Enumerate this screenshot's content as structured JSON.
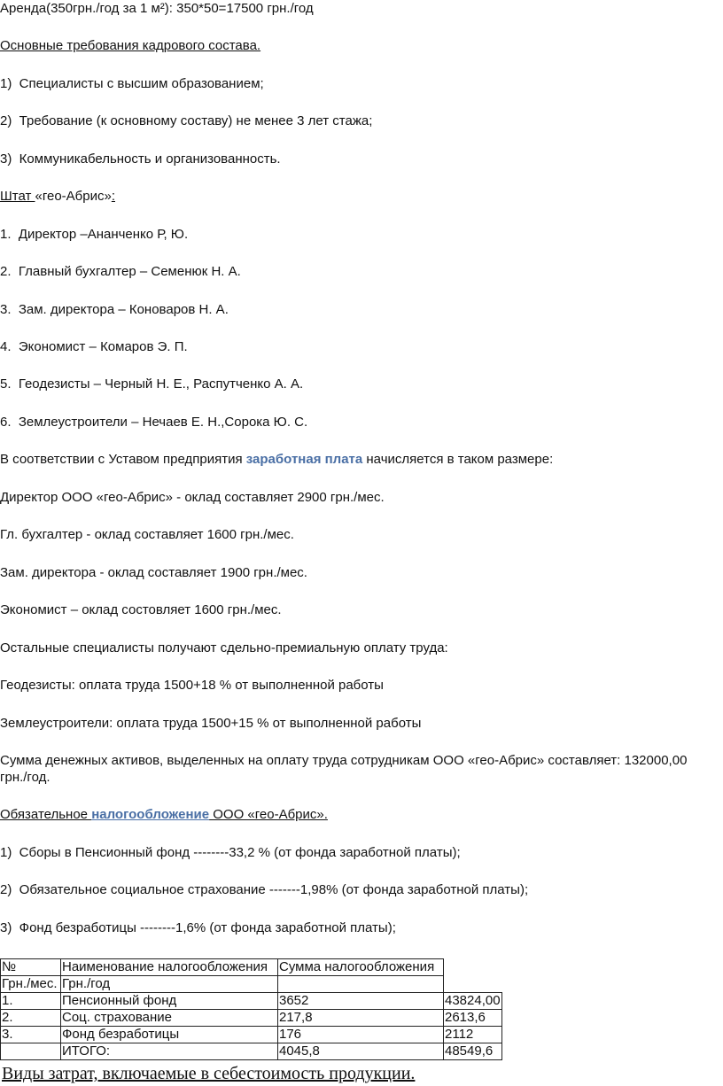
{
  "colors": {
    "highlight": "#4a6fa5",
    "text": "#111111"
  },
  "lines": [
    {
      "segments": [
        {
          "text": "Аренда(350грн./год за 1 м²): 350*50=17500 грн./год"
        }
      ]
    },
    {
      "segments": [
        {
          "text": "Основные требования кадрового состава.",
          "u": true
        }
      ]
    },
    {
      "segments": [
        {
          "text": "1)  Специалисты с высшим образованием;"
        }
      ]
    },
    {
      "segments": [
        {
          "text": "2)  Требование (к основному составу) не менее 3 лет стажа;"
        }
      ]
    },
    {
      "segments": [
        {
          "text": "3)  Коммуникабельность и организованность."
        }
      ]
    },
    {
      "segments": [
        {
          "text": "Штат ",
          "u": true
        },
        {
          "text": "«гео-Абрис»"
        },
        {
          "text": ":",
          "u": true
        }
      ]
    },
    {
      "segments": [
        {
          "text": "1.  Директор –Ананченко Р, Ю."
        }
      ]
    },
    {
      "segments": [
        {
          "text": "2.  Главный бухгалтер – Семенюк Н. А."
        }
      ]
    },
    {
      "segments": [
        {
          "text": "3.  Зам. директора – Коноваров Н. А."
        }
      ]
    },
    {
      "segments": [
        {
          "text": "4.  Экономист – Комаров Э. П."
        }
      ]
    },
    {
      "segments": [
        {
          "text": "5.  Геодезисты – Черный Н. Е., Распутченко А. А."
        }
      ]
    },
    {
      "segments": [
        {
          "text": "6.  Землеустроители – Нечаев Е. Н.,Сорока Ю. С."
        }
      ]
    },
    {
      "segments": [
        {
          "text": "В соответствии с Уставом предприятия "
        },
        {
          "text": "заработная плата",
          "hl": true
        },
        {
          "text": " начисляется в таком размере:"
        }
      ]
    },
    {
      "segments": [
        {
          "text": "Директор ООО «гео-Абрис» - оклад составляет 2900 грн./мес."
        }
      ]
    },
    {
      "segments": [
        {
          "text": "Гл. бухгалтер - оклад составляет 1600 грн./мес."
        }
      ]
    },
    {
      "segments": [
        {
          "text": "Зам. директора - оклад составляет 1900 грн./мес."
        }
      ]
    },
    {
      "segments": [
        {
          "text": "Экономист – оклад состовляет 1600 грн./мес."
        }
      ]
    },
    {
      "segments": [
        {
          "text": "Остальные специалисты получают сдельно-премиальную оплату труда:"
        }
      ]
    },
    {
      "segments": [
        {
          "text": "Геодезисты: оплата труда 1500+18 % от выполненной работы"
        }
      ]
    },
    {
      "segments": [
        {
          "text": "Землеустроители: оплата труда 1500+15 % от выполненной работы"
        }
      ]
    },
    {
      "segments": [
        {
          "text": "Сумма денежных активов, выделенных на оплату труда сотрудникам ООО «гео-Абрис» составляет: 132000,00"
        }
      ]
    },
    {
      "segments": [
        {
          "text": "грн./год."
        }
      ]
    },
    {
      "segments": [
        {
          "text": "Обязательное ",
          "u": true
        },
        {
          "text": "налогообложение",
          "hl": true,
          "u": true
        },
        {
          "text": " ООО «гео-Абрис».",
          "u": true
        }
      ]
    },
    {
      "segments": [
        {
          "text": "1)  Сборы в Пенсионный фонд --------33,2 % (от фонда заработной платы);"
        }
      ]
    },
    {
      "segments": [
        {
          "text": "2)  Обязательное социальное страхование -------1,98% (от фонда заработной платы);"
        }
      ]
    },
    {
      "segments": [
        {
          "text": "3)  Фонд безработицы --------1,6% (от фонда заработной платы);"
        }
      ]
    }
  ],
  "table": {
    "header": [
      "№",
      "Наименование налогообложения",
      "Сумма налогообложения"
    ],
    "subheader": [
      "Грн./мес.",
      "Грн./год",
      ""
    ],
    "rows": [
      [
        "1.",
        "Пенсионный фонд",
        "3652",
        "43824,00"
      ],
      [
        "2.",
        "Соц. страхование",
        "217,8",
        "2613,6"
      ],
      [
        "3.",
        "Фонд безработицы",
        "176",
        "2112"
      ],
      [
        "",
        "ИТОГО:",
        "4045,8",
        "48549,6"
      ]
    ]
  },
  "footer": "Виды затрат, включаемые в себестоимость продукции."
}
